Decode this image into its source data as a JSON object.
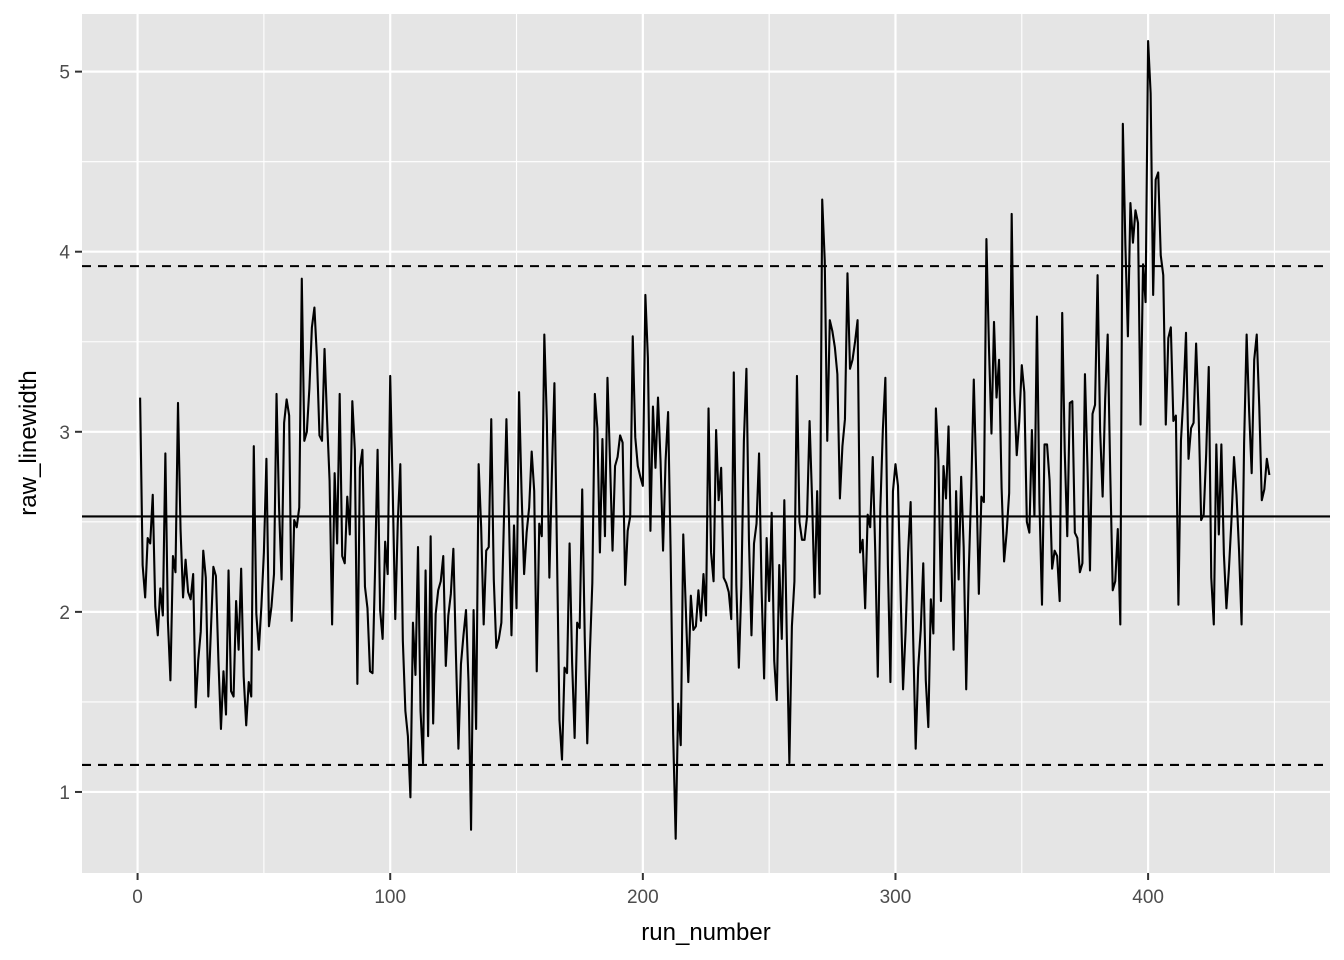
{
  "chart_data": {
    "type": "line",
    "title": "",
    "xlabel": "run_number",
    "ylabel": "raw_linewidth",
    "xlim": [
      -22,
      472
    ],
    "ylim": [
      0.55,
      5.32
    ],
    "x_ticks": [
      0,
      100,
      200,
      300,
      400
    ],
    "x_tick_labels": [
      "0",
      "100",
      "200",
      "300",
      "400"
    ],
    "y_ticks": [
      1,
      2,
      3,
      4,
      5
    ],
    "y_tick_labels": [
      "1",
      "2",
      "3",
      "4",
      "5"
    ],
    "grid": true,
    "legend": "none",
    "colors": {
      "panel": "#e5e5e5",
      "grid": "#ffffff",
      "series": "#000000",
      "tick": "#4d4d4d"
    },
    "reference_lines": [
      {
        "y": 2.53,
        "style": "solid"
      },
      {
        "y": 3.92,
        "style": "dashed"
      },
      {
        "y": 1.15,
        "style": "dashed"
      }
    ],
    "series": [
      {
        "x_start": 1,
        "x_step": 1,
        "values": [
          3.19,
          2.26,
          2.08,
          2.41,
          2.38,
          2.65,
          2.03,
          1.87,
          2.13,
          1.98,
          2.88,
          1.95,
          1.62,
          2.31,
          2.22,
          3.16,
          2.46,
          2.08,
          2.29,
          2.11,
          2.07,
          2.21,
          1.47,
          1.73,
          1.89,
          2.34,
          2.19,
          1.53,
          1.89,
          2.25,
          2.2,
          1.73,
          1.35,
          1.67,
          1.43,
          2.23,
          1.56,
          1.53,
          2.06,
          1.79,
          2.24,
          1.64,
          1.37,
          1.61,
          1.53,
          2.92,
          1.99,
          1.79,
          2.03,
          2.33,
          2.85,
          1.92,
          2.03,
          2.21,
          3.21,
          2.58,
          2.18,
          3.05,
          3.18,
          3.09,
          1.95,
          2.51,
          2.47,
          2.58,
          3.85,
          2.95,
          3.0,
          3.24,
          3.58,
          3.69,
          3.41,
          2.98,
          2.95,
          3.46,
          3.07,
          2.73,
          1.93,
          2.77,
          2.38,
          3.21,
          2.31,
          2.27,
          2.64,
          2.43,
          3.17,
          2.9,
          1.6,
          2.8,
          2.9,
          2.14,
          2.02,
          1.67,
          1.66,
          2.23,
          2.9,
          2.01,
          1.85,
          2.39,
          2.21,
          3.31,
          2.67,
          1.96,
          2.5,
          2.82,
          1.84,
          1.45,
          1.31,
          0.97,
          1.94,
          1.65,
          2.36,
          1.45,
          1.16,
          2.23,
          1.31,
          2.42,
          1.38,
          1.99,
          2.12,
          2.17,
          2.31,
          1.7,
          1.98,
          2.1,
          2.35,
          1.77,
          1.24,
          1.71,
          1.87,
          2.01,
          1.61,
          0.79,
          2.01,
          1.35,
          2.82,
          2.47,
          1.93,
          2.34,
          2.36,
          3.07,
          2.18,
          1.8,
          1.85,
          1.94,
          2.5,
          3.07,
          2.53,
          1.87,
          2.48,
          2.02,
          3.22,
          2.66,
          2.21,
          2.44,
          2.58,
          2.89,
          2.67,
          1.67,
          2.49,
          2.42,
          3.54,
          3.06,
          2.19,
          2.77,
          3.27,
          2.34,
          1.4,
          1.18,
          1.69,
          1.66,
          2.38,
          1.72,
          1.3,
          1.94,
          1.91,
          2.68,
          1.86,
          1.27,
          1.76,
          2.16,
          3.21,
          3.02,
          2.33,
          2.96,
          2.42,
          3.3,
          2.84,
          2.34,
          2.81,
          2.86,
          2.98,
          2.94,
          2.15,
          2.45,
          2.53,
          3.53,
          2.97,
          2.81,
          2.75,
          2.7,
          3.76,
          3.41,
          2.45,
          3.14,
          2.8,
          3.19,
          2.84,
          2.34,
          2.84,
          3.11,
          2.33,
          1.32,
          0.74,
          1.49,
          1.26,
          2.43,
          2.02,
          1.61,
          2.09,
          1.9,
          1.92,
          2.12,
          1.95,
          2.21,
          1.98,
          3.13,
          2.33,
          2.17,
          3.01,
          2.62,
          2.8,
          2.19,
          2.16,
          2.11,
          1.96,
          3.33,
          2.15,
          1.69,
          2.14,
          2.95,
          3.35,
          2.4,
          1.87,
          2.38,
          2.49,
          2.88,
          2.13,
          1.63,
          2.41,
          2.06,
          2.55,
          1.73,
          1.51,
          2.26,
          1.85,
          2.62,
          1.85,
          1.16,
          1.92,
          2.17,
          3.31,
          2.5,
          2.4,
          2.4,
          2.53,
          3.06,
          2.62,
          2.08,
          2.67,
          2.1,
          4.29,
          3.95,
          2.95,
          3.62,
          3.56,
          3.47,
          3.32,
          2.63,
          2.92,
          3.07,
          3.88,
          3.35,
          3.4,
          3.5,
          3.62,
          2.33,
          2.4,
          2.02,
          2.54,
          2.47,
          2.86,
          2.33,
          1.64,
          2.57,
          3.01,
          3.3,
          2.26,
          1.61,
          2.67,
          2.82,
          2.7,
          2.12,
          1.57,
          1.89,
          2.33,
          2.61,
          1.86,
          1.24,
          1.69,
          1.9,
          2.27,
          1.62,
          1.36,
          2.07,
          1.88,
          3.13,
          2.84,
          2.06,
          2.81,
          2.63,
          3.03,
          2.38,
          1.79,
          2.67,
          2.18,
          2.75,
          2.36,
          1.57,
          2.22,
          2.69,
          3.29,
          2.74,
          2.1,
          2.64,
          2.61,
          4.07,
          3.47,
          2.99,
          3.61,
          3.19,
          3.4,
          2.69,
          2.28,
          2.44,
          2.66,
          4.21,
          3.22,
          2.87,
          3.06,
          3.37,
          3.22,
          2.5,
          2.44,
          3.01,
          2.53,
          3.64,
          2.6,
          2.04,
          2.93,
          2.93,
          2.73,
          2.24,
          2.34,
          2.31,
          2.06,
          3.66,
          2.89,
          2.42,
          3.16,
          3.17,
          2.44,
          2.41,
          2.22,
          2.27,
          3.32,
          2.81,
          2.23,
          3.1,
          3.15,
          3.87,
          3.01,
          2.64,
          3.18,
          3.54,
          2.78,
          2.12,
          2.17,
          2.46,
          1.93,
          4.71,
          4.04,
          3.53,
          4.27,
          4.05,
          4.23,
          4.16,
          3.04,
          3.93,
          3.72,
          5.17,
          4.88,
          3.76,
          4.4,
          4.44,
          3.98,
          3.87,
          3.04,
          3.52,
          3.58,
          3.06,
          3.09,
          2.04,
          2.95,
          3.2,
          3.55,
          2.85,
          3.02,
          3.05,
          3.49,
          3.1,
          2.51,
          2.54,
          2.88,
          3.36,
          2.19,
          1.93,
          2.93,
          2.43,
          2.93,
          2.32,
          2.02,
          2.24,
          2.51,
          2.86,
          2.65,
          2.34,
          1.93,
          2.94,
          3.54,
          3.11,
          2.77,
          3.4,
          3.54,
          3.14,
          2.62,
          2.68,
          2.85,
          2.76
        ]
      }
    ]
  }
}
